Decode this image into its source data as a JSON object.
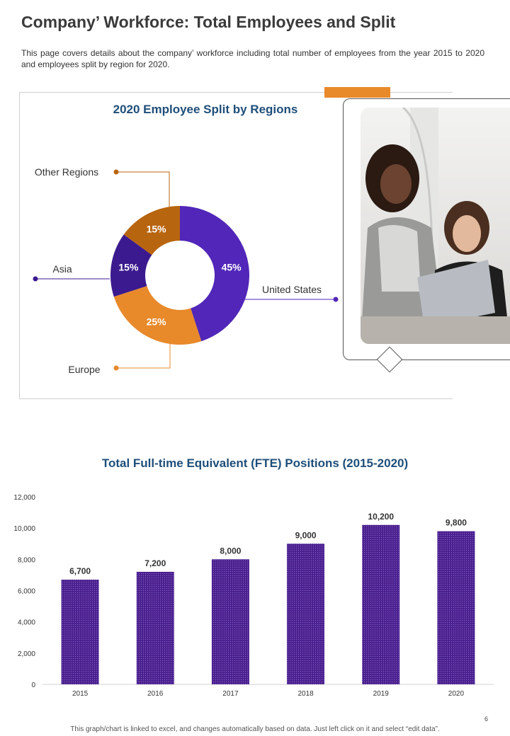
{
  "header": {
    "title": "Company’ Workforce: Total Employees and Split",
    "description": "This page covers details about the company’ workforce including total number of employees from the year 2015 to 2020 and employees split by region for 2020."
  },
  "colors": {
    "purple": "#5126b8",
    "dark_purple": "#3b1a8f",
    "orange": "#e8892a",
    "brown_orange": "#b8650f",
    "title_blue": "#1f4e79",
    "bar_purple": "#4b1f8f"
  },
  "chart_data": [
    {
      "type": "pie",
      "title": "2020 Employee Split by Regions",
      "slices": [
        {
          "name": "United States",
          "value": 45,
          "label": "45%",
          "color": "#5126b8"
        },
        {
          "name": "Europe",
          "value": 25,
          "label": "25%",
          "color": "#e8892a"
        },
        {
          "name": "Asia",
          "value": 15,
          "label": "15%",
          "color": "#3b1a8f"
        },
        {
          "name": "Other Regions",
          "value": 15,
          "label": "15%",
          "color": "#b8650f"
        }
      ]
    },
    {
      "type": "bar",
      "title": "Total Full-time Equivalent (FTE) Positions (2015-2020)",
      "categories": [
        "2015",
        "2016",
        "2017",
        "2018",
        "2019",
        "2020"
      ],
      "values": [
        6700,
        7200,
        8000,
        9000,
        10200,
        9800
      ],
      "value_labels": [
        "6,700",
        "7,200",
        "8,000",
        "9,000",
        "10,200",
        "9,800"
      ],
      "yticks": [
        "0",
        "2,000",
        "4,000",
        "6,000",
        "8,000",
        "10,000",
        "12,000"
      ],
      "ylim": [
        0,
        12000
      ],
      "xlabel": "",
      "ylabel": "",
      "grid": false
    }
  ],
  "footer": {
    "page_number": "6",
    "note": "This graph/chart is linked to excel, and changes automatically based on data. Just left click on it and select “edit data”."
  }
}
